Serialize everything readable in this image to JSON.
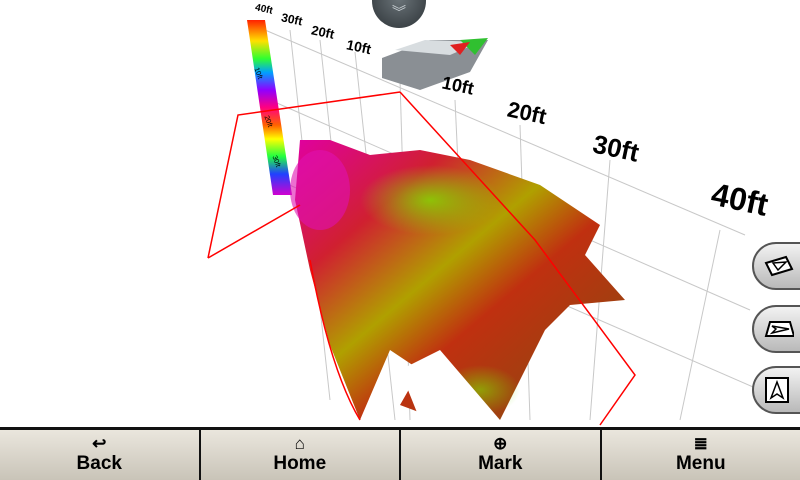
{
  "view": "3D sonar",
  "depth_scale": {
    "labels": [
      "40ft",
      "10ft",
      "20ft",
      "30ft"
    ]
  },
  "range_labels": {
    "back": [
      "40ft",
      "30ft",
      "20ft",
      "10ft"
    ],
    "front": [
      "10ft",
      "20ft",
      "30ft",
      "40ft"
    ]
  },
  "top_tab": {
    "icon": "double-chevron-down-icon"
  },
  "side_buttons": [
    {
      "name": "view-angle-1",
      "icon": "perspective-arrow-icon"
    },
    {
      "name": "view-angle-2",
      "icon": "side-arrow-icon"
    },
    {
      "name": "view-top",
      "icon": "top-arrow-icon"
    }
  ],
  "bottom_bar": [
    {
      "label": "Back",
      "icon": "↩"
    },
    {
      "label": "Home",
      "icon": "⌂"
    },
    {
      "label": "Mark",
      "icon": "⊕"
    },
    {
      "label": "Menu",
      "icon": "≣"
    }
  ],
  "colors": {
    "grid": "#c8c8c8",
    "beam": "#ff0000",
    "bar": "#cfcbc1"
  }
}
